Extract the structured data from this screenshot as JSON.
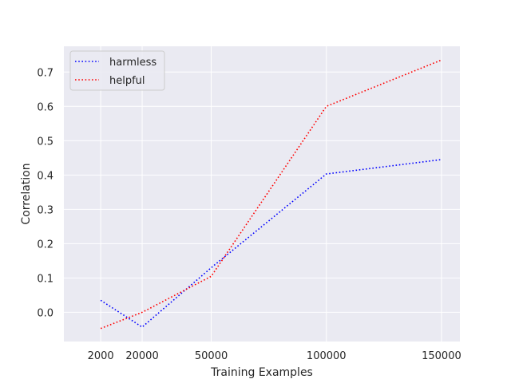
{
  "chart_data": {
    "type": "line",
    "xlabel": "Training Examples",
    "ylabel": "Correlation",
    "x": [
      2000,
      20000,
      50000,
      100000,
      150000
    ],
    "x_ticks": [
      2000,
      20000,
      50000,
      100000,
      150000
    ],
    "y_ticks": [
      0.0,
      0.1,
      0.2,
      0.3,
      0.4,
      0.5,
      0.6,
      0.7
    ],
    "xlim": [
      -14000,
      158000
    ],
    "ylim": [
      -0.085,
      0.775
    ],
    "grid": true,
    "legend_position": "top-left",
    "background_color": "#eaeaf2",
    "series": [
      {
        "name": "harmless",
        "color": "#0000ff",
        "style": "dotted",
        "values": [
          0.035,
          -0.043,
          0.13,
          0.403,
          0.445
        ]
      },
      {
        "name": "helpful",
        "color": "#ff0000",
        "style": "dotted",
        "values": [
          -0.047,
          0.0,
          0.105,
          0.6,
          0.735
        ]
      }
    ]
  }
}
